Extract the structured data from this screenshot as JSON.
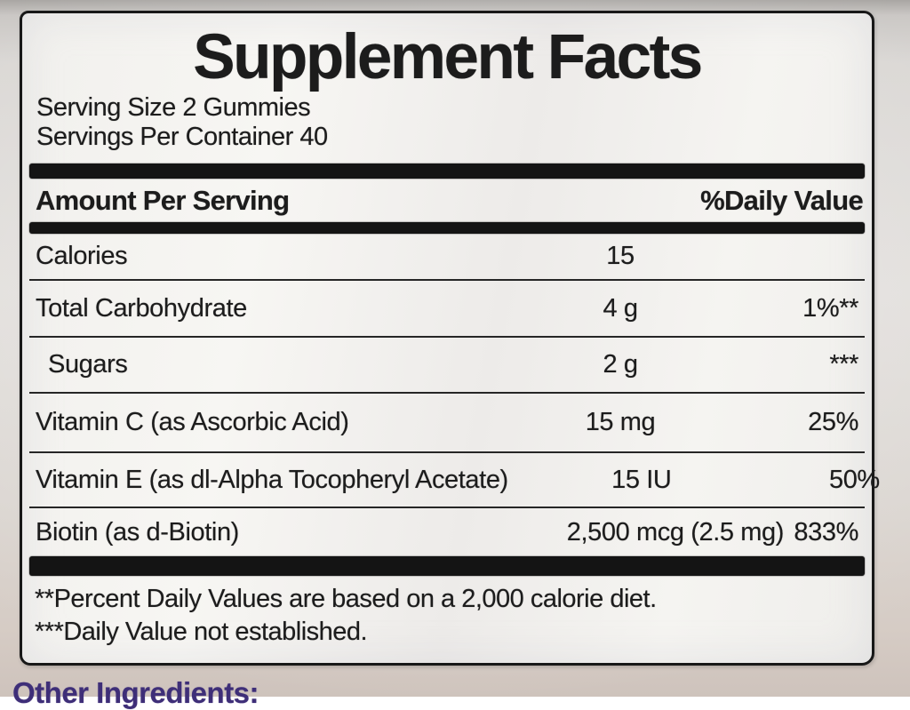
{
  "label": {
    "title": "Supplement Facts",
    "serving_size": "Serving Size 2 Gummies",
    "servings_per_container": "Servings Per Container 40",
    "header": {
      "amount_per_serving": "Amount Per Serving",
      "daily_value": "%Daily Value"
    },
    "rows": [
      {
        "name": "Calories",
        "amount": "15",
        "dv": ""
      },
      {
        "name": "Total Carbohydrate",
        "amount": "4 g",
        "dv": "1%**"
      },
      {
        "name": "Sugars",
        "amount": "2 g",
        "dv": "***"
      },
      {
        "name": "Vitamin C (as Ascorbic Acid)",
        "amount": "15 mg",
        "dv": "25%"
      },
      {
        "name": "Vitamin E (as dl-Alpha Tocopheryl Acetate)",
        "amount": "15 IU",
        "dv": "50%"
      },
      {
        "name": "Biotin (as d-Biotin)",
        "amount": "2,500 mcg (2.5 mg)",
        "dv": "833%"
      }
    ],
    "footnotes": [
      "**Percent Daily Values are based on a 2,000 calorie diet.",
      "***Daily Value not established."
    ],
    "other_ingredients": "Other Ingredients:"
  },
  "colors": {
    "label_text": "#1c1c1c",
    "label_background": "#f3f2ef",
    "photo_background": "#d9d6d2",
    "other_ingredients_text": "#3e2e78"
  }
}
